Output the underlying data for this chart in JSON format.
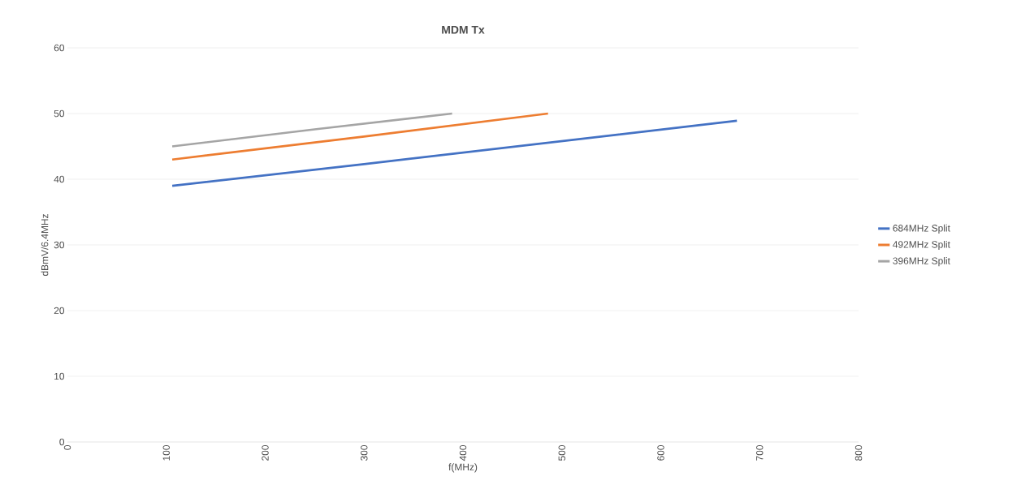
{
  "chart_data": {
    "type": "line",
    "title": "MDM Tx",
    "xlabel": "f(MHz)",
    "ylabel": "dBmV/6.4MHz",
    "xlim": [
      0,
      800
    ],
    "xticks": [
      0,
      100,
      200,
      300,
      400,
      500,
      600,
      700,
      800
    ],
    "ylim": [
      0,
      60
    ],
    "yticks": [
      0,
      10,
      20,
      30,
      40,
      50,
      60
    ],
    "grid": "y",
    "legend": "right",
    "marker": "none",
    "line_style": "solid",
    "series": [
      {
        "name": "684MHz Split",
        "color": "#4472c4",
        "x": [
          106,
          300,
          677
        ],
        "values": [
          39,
          42.3,
          48.9
        ]
      },
      {
        "name": "492MHz Split",
        "color": "#ed7d31",
        "x": [
          106,
          300,
          486
        ],
        "values": [
          43,
          46.5,
          50
        ]
      },
      {
        "name": "396MHz Split",
        "color": "#a5a5a5",
        "x": [
          106,
          250,
          389
        ],
        "values": [
          45,
          47.6,
          50
        ]
      }
    ]
  }
}
